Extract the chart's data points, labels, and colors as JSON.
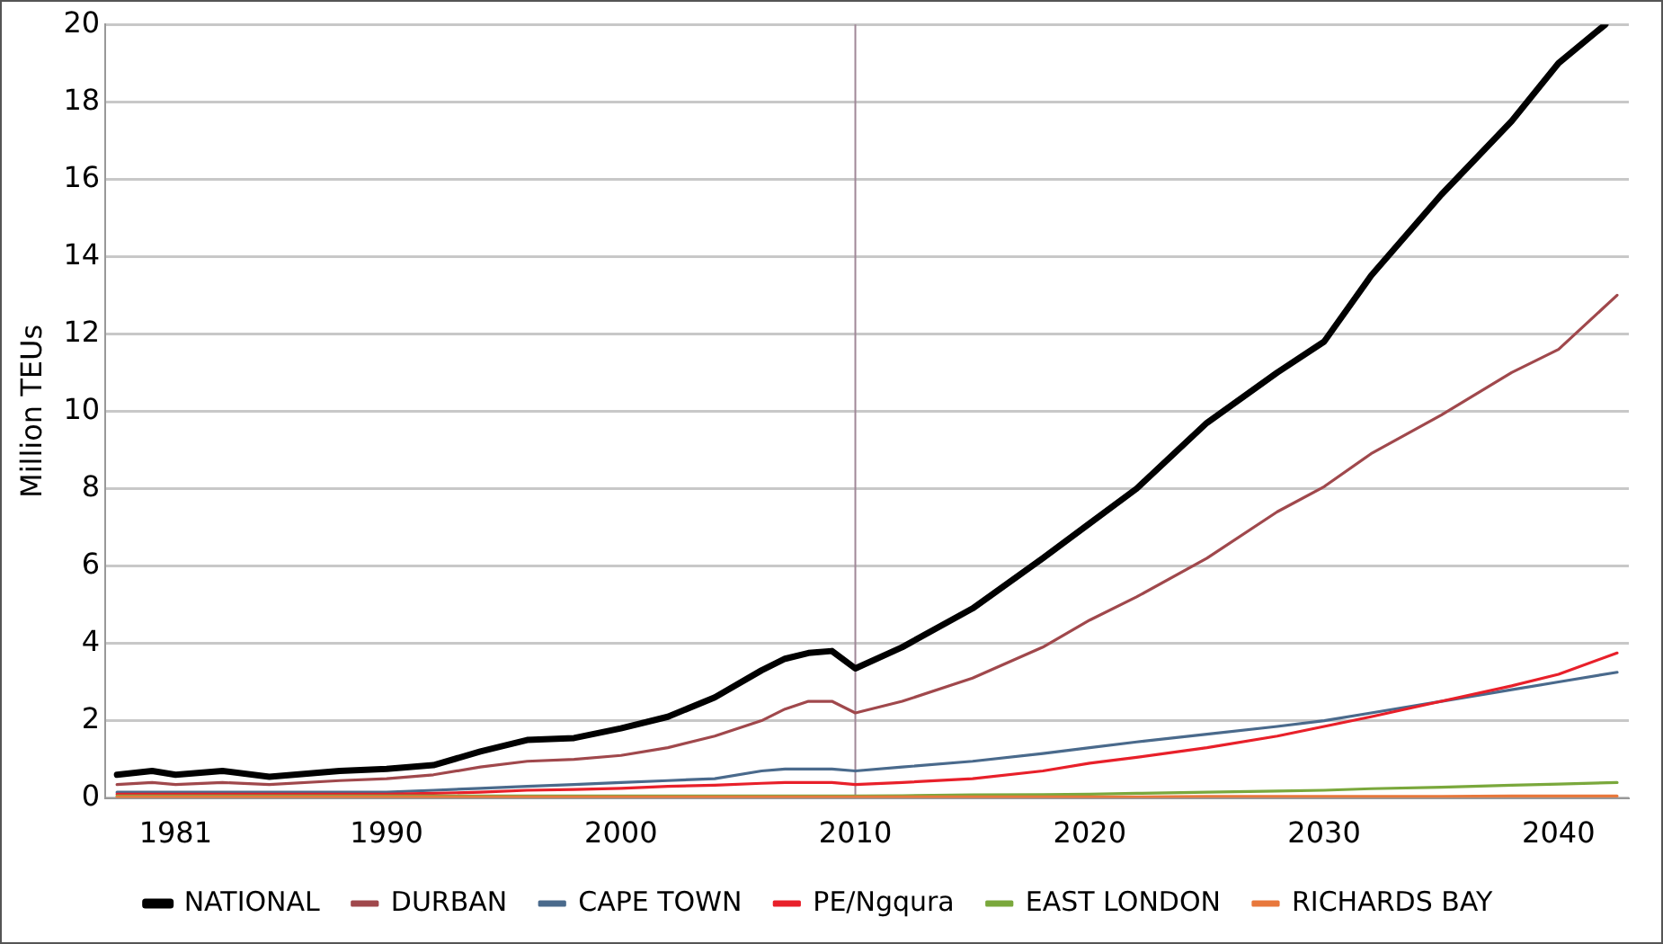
{
  "chart_data": {
    "type": "line",
    "ylabel": "Million TEUs",
    "xlim": [
      1978,
      2043
    ],
    "xticks": [
      1981,
      1990,
      2000,
      2010,
      2020,
      2030,
      2040
    ],
    "ylim": [
      0,
      20
    ],
    "yticks": [
      0,
      2,
      4,
      6,
      8,
      10,
      12,
      14,
      16,
      18,
      20
    ],
    "grid": "y",
    "legend": "bottom",
    "marker": "none",
    "line_style": "solid",
    "ref_lines": [
      {
        "axis": "x",
        "value": 2010,
        "color": "#a08898"
      }
    ],
    "x": [
      1978.5,
      1980,
      1981,
      1983,
      1985,
      1988,
      1990,
      1992,
      1994,
      1996,
      1998,
      2000,
      2002,
      2004,
      2006,
      2007,
      2008,
      2009,
      2010,
      2012,
      2015,
      2018,
      2020,
      2022,
      2025,
      2028,
      2030,
      2032,
      2035,
      2038,
      2040,
      2042.5
    ],
    "series": [
      {
        "name": "NATIONAL",
        "color": "#000000",
        "x": [
          1978.5,
          1980,
          1981,
          1983,
          1985,
          1988,
          1990,
          1992,
          1994,
          1996,
          1998,
          2000,
          2002,
          2004,
          2006,
          2007,
          2008,
          2009,
          2010,
          2012,
          2015,
          2018,
          2020,
          2022,
          2025,
          2028,
          2030,
          2032,
          2035,
          2038,
          2040,
          2042
        ],
        "values": [
          0.6,
          0.7,
          0.6,
          0.7,
          0.55,
          0.7,
          0.75,
          0.85,
          1.2,
          1.5,
          1.55,
          1.8,
          2.1,
          2.6,
          3.3,
          3.6,
          3.75,
          3.8,
          3.35,
          3.9,
          4.9,
          6.2,
          7.1,
          8.0,
          9.7,
          11.0,
          11.8,
          13.5,
          15.6,
          17.5,
          19.0,
          20
        ]
      },
      {
        "name": "DURBAN",
        "color": "#a0484c",
        "values": [
          0.35,
          0.4,
          0.35,
          0.4,
          0.35,
          0.45,
          0.5,
          0.6,
          0.8,
          0.95,
          1.0,
          1.1,
          1.3,
          1.6,
          2.0,
          2.3,
          2.5,
          2.5,
          2.2,
          2.5,
          3.1,
          3.9,
          4.6,
          5.2,
          6.2,
          7.4,
          8.05,
          8.9,
          9.9,
          11.0,
          11.6,
          13.0
        ]
      },
      {
        "name": "CAPE TOWN",
        "color": "#4a6a8c",
        "values": [
          0.15,
          0.15,
          0.15,
          0.15,
          0.15,
          0.15,
          0.15,
          0.2,
          0.25,
          0.3,
          0.35,
          0.4,
          0.45,
          0.5,
          0.7,
          0.75,
          0.75,
          0.75,
          0.7,
          0.8,
          0.95,
          1.15,
          1.3,
          1.45,
          1.65,
          1.85,
          2.0,
          2.2,
          2.5,
          2.8,
          3.0,
          3.25
        ]
      },
      {
        "name": "PE/Ngqura",
        "color": "#e8202a",
        "values": [
          0.1,
          0.1,
          0.1,
          0.1,
          0.1,
          0.1,
          0.1,
          0.12,
          0.15,
          0.2,
          0.22,
          0.25,
          0.3,
          0.33,
          0.38,
          0.4,
          0.4,
          0.4,
          0.35,
          0.4,
          0.5,
          0.7,
          0.9,
          1.05,
          1.3,
          1.6,
          1.85,
          2.1,
          2.5,
          2.9,
          3.2,
          3.75
        ]
      },
      {
        "name": "EAST LONDON",
        "color": "#7aa83c",
        "values": [
          0.05,
          0.05,
          0.05,
          0.05,
          0.05,
          0.05,
          0.05,
          0.05,
          0.05,
          0.05,
          0.05,
          0.05,
          0.05,
          0.05,
          0.05,
          0.05,
          0.05,
          0.05,
          0.05,
          0.06,
          0.08,
          0.09,
          0.1,
          0.12,
          0.15,
          0.18,
          0.2,
          0.24,
          0.28,
          0.33,
          0.36,
          0.4
        ]
      },
      {
        "name": "RICHARDS BAY",
        "color": "#e8783c",
        "values": [
          0.03,
          0.03,
          0.03,
          0.03,
          0.03,
          0.03,
          0.03,
          0.03,
          0.03,
          0.03,
          0.03,
          0.03,
          0.03,
          0.03,
          0.03,
          0.03,
          0.03,
          0.03,
          0.03,
          0.03,
          0.03,
          0.03,
          0.03,
          0.03,
          0.04,
          0.04,
          0.04,
          0.04,
          0.04,
          0.05,
          0.05,
          0.05
        ]
      }
    ]
  }
}
